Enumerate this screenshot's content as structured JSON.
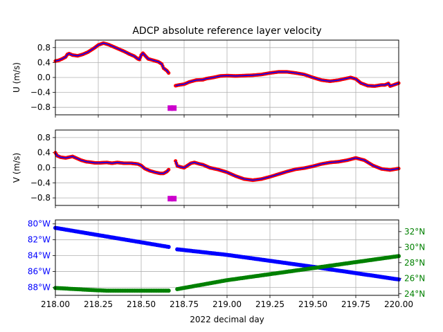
{
  "chart_data": [
    {
      "type": "line",
      "panel": "U",
      "title": "ADCP absolute reference layer velocity",
      "ylabel": "U (m/s)",
      "xlim": [
        218.0,
        220.0
      ],
      "ylim": [
        -1.0,
        1.0
      ],
      "yticks": [
        0.8,
        0.4,
        0.0,
        -0.4,
        -0.8
      ],
      "ytick_labels": [
        "0.8",
        "0.4",
        "0.0",
        "−0.4",
        "−0.8"
      ],
      "grid": true,
      "series": [
        {
          "color": "#ff0000",
          "line_color": "#0000ff",
          "segments": [
            [
              [
                218.0,
                0.44
              ],
              [
                218.02,
                0.46
              ],
              [
                218.04,
                0.5
              ],
              [
                218.06,
                0.55
              ],
              [
                218.07,
                0.62
              ],
              [
                218.08,
                0.64
              ],
              [
                218.1,
                0.6
              ],
              [
                218.13,
                0.58
              ],
              [
                218.16,
                0.62
              ],
              [
                218.19,
                0.68
              ],
              [
                218.21,
                0.74
              ],
              [
                218.23,
                0.8
              ],
              [
                218.25,
                0.87
              ],
              [
                218.28,
                0.92
              ],
              [
                218.31,
                0.88
              ],
              [
                218.34,
                0.82
              ],
              [
                218.37,
                0.76
              ],
              [
                218.4,
                0.7
              ],
              [
                218.43,
                0.63
              ],
              [
                218.46,
                0.57
              ],
              [
                218.48,
                0.5
              ],
              [
                218.49,
                0.48
              ],
              [
                218.5,
                0.6
              ],
              [
                218.51,
                0.65
              ],
              [
                218.52,
                0.6
              ],
              [
                218.54,
                0.5
              ],
              [
                218.57,
                0.46
              ],
              [
                218.6,
                0.42
              ],
              [
                218.62,
                0.36
              ],
              [
                218.63,
                0.25
              ],
              [
                218.65,
                0.18
              ],
              [
                218.66,
                0.12
              ]
            ],
            [
              [
                218.7,
                -0.22
              ],
              [
                218.72,
                -0.2
              ],
              [
                218.75,
                -0.18
              ],
              [
                218.78,
                -0.12
              ],
              [
                218.82,
                -0.07
              ],
              [
                218.86,
                -0.06
              ],
              [
                218.88,
                -0.03
              ],
              [
                218.92,
                0.0
              ],
              [
                218.96,
                0.04
              ],
              [
                219.0,
                0.05
              ],
              [
                219.05,
                0.04
              ],
              [
                219.1,
                0.05
              ],
              [
                219.15,
                0.06
              ],
              [
                219.2,
                0.08
              ],
              [
                219.25,
                0.12
              ],
              [
                219.3,
                0.15
              ],
              [
                219.35,
                0.15
              ],
              [
                219.4,
                0.12
              ],
              [
                219.45,
                0.08
              ],
              [
                219.5,
                0.0
              ],
              [
                219.55,
                -0.07
              ],
              [
                219.6,
                -0.1
              ],
              [
                219.65,
                -0.07
              ],
              [
                219.7,
                -0.02
              ],
              [
                219.72,
                0.0
              ],
              [
                219.75,
                -0.04
              ],
              [
                219.78,
                -0.15
              ],
              [
                219.82,
                -0.22
              ],
              [
                219.86,
                -0.23
              ],
              [
                219.9,
                -0.2
              ],
              [
                219.92,
                -0.2
              ],
              [
                219.94,
                -0.16
              ],
              [
                219.95,
                -0.23
              ],
              [
                219.97,
                -0.2
              ],
              [
                220.0,
                -0.15
              ]
            ]
          ]
        },
        {
          "color": "#cc00cc",
          "marker": "square",
          "points": [
            [
              218.67,
              -0.82
            ],
            [
              218.69,
              -0.82
            ]
          ]
        }
      ]
    },
    {
      "type": "line",
      "panel": "V",
      "ylabel": "V (m/s)",
      "xlim": [
        218.0,
        220.0
      ],
      "ylim": [
        -1.0,
        1.0
      ],
      "yticks": [
        0.8,
        0.4,
        0.0,
        -0.4,
        -0.8
      ],
      "ytick_labels": [
        "0.8",
        "0.4",
        "0.0",
        "−0.4",
        "−0.8"
      ],
      "grid": true,
      "series": [
        {
          "color": "#ff0000",
          "line_color": "#0000ff",
          "segments": [
            [
              [
                218.0,
                0.4
              ],
              [
                218.01,
                0.32
              ],
              [
                218.03,
                0.28
              ],
              [
                218.06,
                0.26
              ],
              [
                218.08,
                0.28
              ],
              [
                218.1,
                0.3
              ],
              [
                218.12,
                0.26
              ],
              [
                218.15,
                0.2
              ],
              [
                218.18,
                0.16
              ],
              [
                218.2,
                0.15
              ],
              [
                218.23,
                0.13
              ],
              [
                218.26,
                0.13
              ],
              [
                218.3,
                0.14
              ],
              [
                218.33,
                0.12
              ],
              [
                218.36,
                0.14
              ],
              [
                218.4,
                0.12
              ],
              [
                218.44,
                0.12
              ],
              [
                218.48,
                0.1
              ],
              [
                218.5,
                0.06
              ],
              [
                218.52,
                -0.02
              ],
              [
                218.55,
                -0.08
              ],
              [
                218.58,
                -0.12
              ],
              [
                218.61,
                -0.15
              ],
              [
                218.63,
                -0.15
              ],
              [
                218.65,
                -0.1
              ],
              [
                218.66,
                -0.05
              ]
            ],
            [
              [
                218.7,
                0.18
              ],
              [
                218.71,
                0.05
              ],
              [
                218.73,
                0.02
              ],
              [
                218.75,
                0.0
              ],
              [
                218.77,
                0.06
              ],
              [
                218.79,
                0.12
              ],
              [
                218.81,
                0.14
              ],
              [
                218.84,
                0.1
              ],
              [
                218.86,
                0.08
              ],
              [
                218.88,
                0.04
              ],
              [
                218.9,
                0.0
              ],
              [
                218.95,
                -0.05
              ],
              [
                219.0,
                -0.12
              ],
              [
                219.05,
                -0.22
              ],
              [
                219.1,
                -0.3
              ],
              [
                219.15,
                -0.33
              ],
              [
                219.2,
                -0.3
              ],
              [
                219.25,
                -0.24
              ],
              [
                219.3,
                -0.17
              ],
              [
                219.35,
                -0.1
              ],
              [
                219.4,
                -0.04
              ],
              [
                219.45,
                -0.01
              ],
              [
                219.5,
                0.04
              ],
              [
                219.55,
                0.1
              ],
              [
                219.6,
                0.14
              ],
              [
                219.65,
                0.16
              ],
              [
                219.7,
                0.2
              ],
              [
                219.75,
                0.26
              ],
              [
                219.8,
                0.2
              ],
              [
                219.85,
                0.06
              ],
              [
                219.9,
                -0.03
              ],
              [
                219.95,
                -0.06
              ],
              [
                220.0,
                -0.02
              ]
            ]
          ]
        },
        {
          "color": "#cc00cc",
          "marker": "square",
          "points": [
            [
              218.67,
              -0.82
            ],
            [
              218.69,
              -0.82
            ]
          ]
        }
      ]
    },
    {
      "type": "scatter",
      "panel": "position",
      "xlabel": "2022 decimal day",
      "xlim": [
        218.0,
        220.0
      ],
      "xticks": [
        218.0,
        218.25,
        218.5,
        218.75,
        219.0,
        219.25,
        219.5,
        219.75,
        220.0
      ],
      "xtick_labels": [
        "218.00",
        "218.25",
        "218.50",
        "218.75",
        "219.00",
        "219.25",
        "219.50",
        "219.75",
        "220.00"
      ],
      "y_left": {
        "ylim": [
          -89.0,
          -79.5
        ],
        "ticks": [
          -80,
          -82,
          -84,
          -86,
          -88
        ],
        "tick_labels": [
          "80°W",
          "82°W",
          "84°W",
          "86°W",
          "88°W"
        ],
        "color": "#0000ff"
      },
      "y_right": {
        "ylim": [
          23.8,
          33.5
        ],
        "ticks": [
          32,
          30,
          28,
          26,
          24
        ],
        "tick_labels": [
          "32°N",
          "30°N",
          "28°N",
          "26°N",
          "24°N"
        ],
        "color": "#008000"
      },
      "grid": true,
      "series": [
        {
          "axis": "left",
          "color": "#0000ff",
          "segments": [
            [
              [
                218.0,
                -80.5
              ],
              [
                218.66,
                -82.9
              ]
            ],
            [
              [
                218.71,
                -83.2
              ],
              [
                219.0,
                -83.9
              ],
              [
                219.5,
                -85.4
              ],
              [
                220.0,
                -87.0
              ]
            ]
          ]
        },
        {
          "axis": "right",
          "color": "#008000",
          "segments": [
            [
              [
                218.0,
                24.75
              ],
              [
                218.2,
                24.5
              ],
              [
                218.3,
                24.4
              ],
              [
                218.66,
                24.4
              ]
            ],
            [
              [
                218.71,
                24.6
              ],
              [
                219.0,
                25.75
              ],
              [
                219.5,
                27.3
              ],
              [
                220.0,
                28.85
              ]
            ]
          ]
        }
      ]
    }
  ]
}
